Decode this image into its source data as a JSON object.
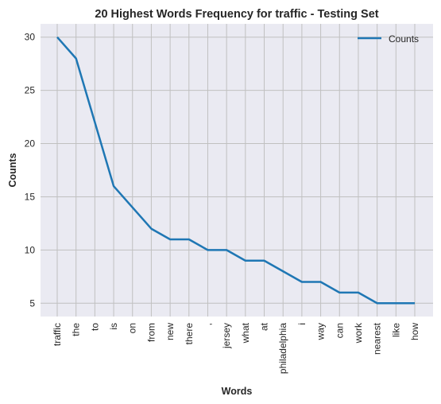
{
  "chart_data": {
    "type": "line",
    "title": "20 Highest Words Frequency for traffic - Testing Set",
    "xlabel": "Words",
    "ylabel": "Counts",
    "categories": [
      "traffic",
      "the",
      "to",
      "is",
      "on",
      "from",
      "new",
      "there",
      ",",
      "jersey",
      "what",
      "at",
      "philadelphia",
      "i",
      "way",
      "can",
      "work",
      "nearest",
      "like",
      "how"
    ],
    "series": [
      {
        "name": "Counts",
        "values": [
          30,
          28,
          22,
          16,
          14,
          12,
          11,
          11,
          10,
          10,
          9,
          9,
          8,
          7,
          7,
          6,
          6,
          5,
          5,
          5
        ]
      }
    ],
    "yticks": [
      "5",
      "10",
      "15",
      "20",
      "25",
      "30"
    ],
    "ylim": [
      3.75,
      31.25
    ],
    "grid": true,
    "legend_position": "top-right",
    "colors": {
      "line": "#1f77b4",
      "plot_bg": "#eaeaf2",
      "grid": "#c0c0c0"
    }
  }
}
